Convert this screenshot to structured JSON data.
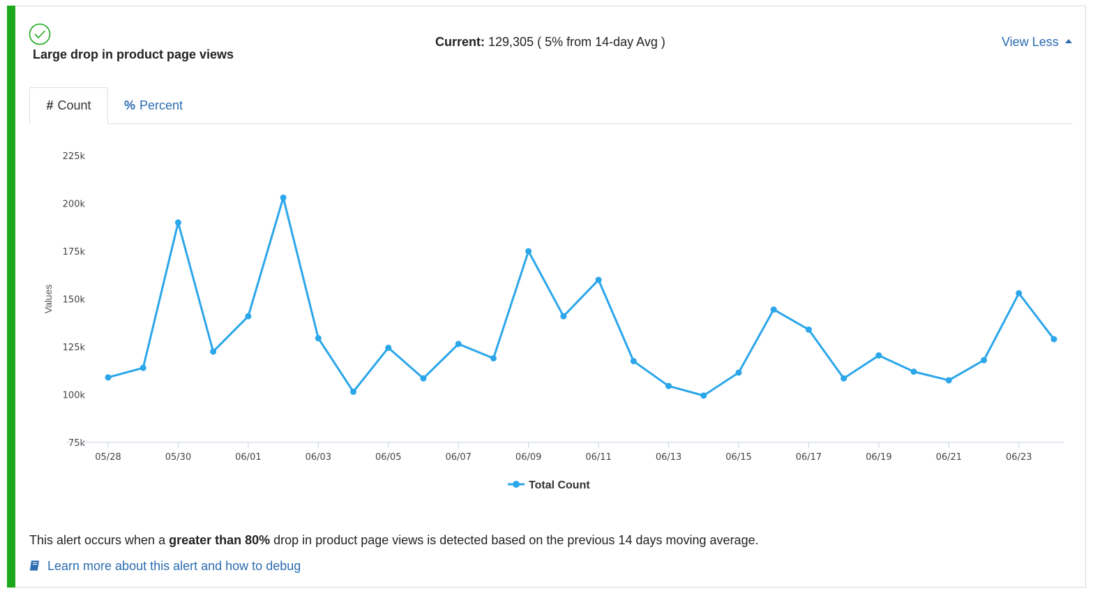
{
  "alert": {
    "title": "Large drop in product page views",
    "status_icon": "check-circle-icon",
    "current_label": "Current:",
    "current_value": "129,305",
    "current_suffix": "( 5% from 14-day Avg )",
    "view_less_label": "View Less",
    "accent_color": "#1ea81e"
  },
  "tabs": [
    {
      "symbol": "#",
      "label": "Count",
      "active": true
    },
    {
      "symbol": "%",
      "label": "Percent",
      "active": false
    }
  ],
  "description": {
    "prefix": "This alert occurs when a ",
    "emphasis": "greater than 80%",
    "suffix": " drop in product page views is detected based on the previous 14 days moving average."
  },
  "learn_more": {
    "icon": "book-icon",
    "label": "Learn more about this alert and how to debug"
  },
  "chart_data": {
    "type": "line",
    "title": "",
    "xlabel": "",
    "ylabel": "Values",
    "ylim": [
      75000,
      225000
    ],
    "yticks": [
      "225k",
      "200k",
      "175k",
      "150k",
      "125k",
      "100k",
      "75k"
    ],
    "ytick_values": [
      225000,
      200000,
      175000,
      150000,
      125000,
      100000,
      75000
    ],
    "x": [
      "05/28",
      "05/29",
      "05/30",
      "05/31",
      "06/01",
      "06/02",
      "06/03",
      "06/04",
      "06/05",
      "06/06",
      "06/07",
      "06/08",
      "06/09",
      "06/10",
      "06/11",
      "06/12",
      "06/13",
      "06/14",
      "06/15",
      "06/16",
      "06/17",
      "06/18",
      "06/19",
      "06/20",
      "06/21",
      "06/22",
      "06/23",
      "06/24"
    ],
    "xtick_labels": [
      "05/28",
      "05/30",
      "06/01",
      "06/03",
      "06/05",
      "06/07",
      "06/09",
      "06/11",
      "06/13",
      "06/15",
      "06/17",
      "06/19",
      "06/21",
      "06/23"
    ],
    "series": [
      {
        "name": "Total Count",
        "color": "#2ba6ea",
        "values": [
          109000,
          114000,
          190000,
          122500,
          141000,
          203000,
          129500,
          101500,
          124500,
          108500,
          126500,
          119000,
          175000,
          141000,
          160000,
          117500,
          104500,
          99500,
          111500,
          144500,
          134000,
          108500,
          120500,
          112000,
          107500,
          118000,
          153000,
          129000
        ]
      }
    ],
    "grid": false,
    "legend_position": "bottom-center"
  }
}
